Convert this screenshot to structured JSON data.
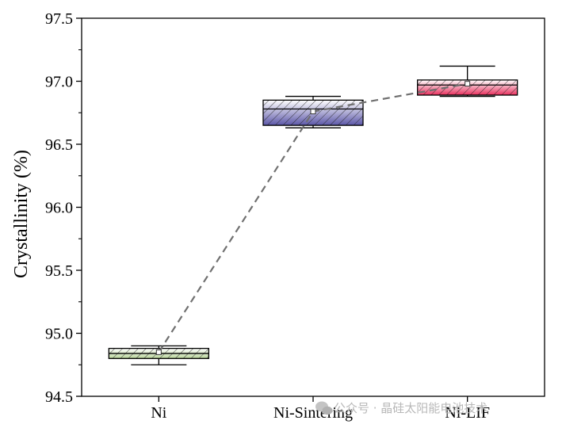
{
  "chart_data": {
    "type": "box",
    "title": "",
    "xlabel": "",
    "ylabel": "Crystallinity (%)",
    "ylim": [
      94.5,
      97.5
    ],
    "yticks": [
      "94.5",
      "95.0",
      "95.5",
      "96.0",
      "96.5",
      "97.0",
      "97.5"
    ],
    "categories": [
      "Ni",
      "Ni-Sintering",
      "Ni-LIF"
    ],
    "boxes": [
      {
        "category": "Ni",
        "min": 94.75,
        "q1": 94.8,
        "median": 94.84,
        "q3": 94.88,
        "max": 94.9,
        "mean": 94.85,
        "color": "#b8d49a"
      },
      {
        "category": "Ni-Sintering",
        "min": 96.63,
        "q1": 96.65,
        "median": 96.78,
        "q3": 96.85,
        "max": 96.88,
        "mean": 96.76,
        "color": "#5c57a8"
      },
      {
        "category": "Ni-LIF",
        "min": 96.88,
        "q1": 96.89,
        "median": 96.97,
        "q3": 97.01,
        "max": 97.12,
        "mean": 96.98,
        "color": "#e8305e"
      }
    ],
    "mean_line": {
      "style": "dashed",
      "color": "#707070"
    },
    "grid": false,
    "legend": "none"
  },
  "watermark": {
    "text": "公众号 · 晶硅太阳能电池技术",
    "icon": "wechat-icon"
  }
}
